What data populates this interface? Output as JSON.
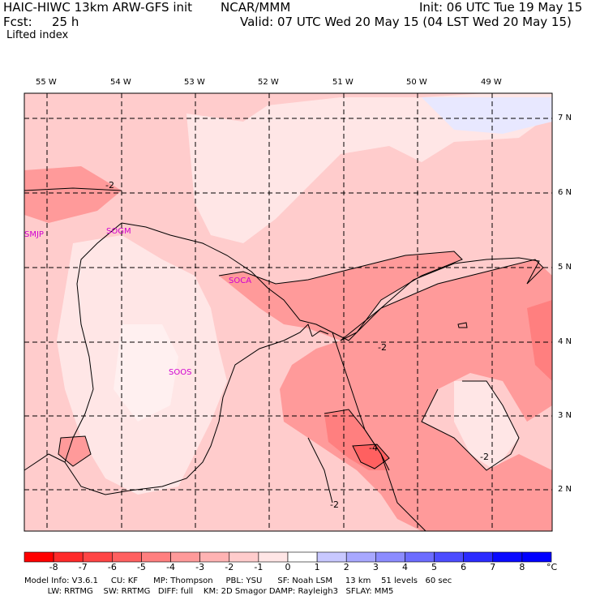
{
  "header": {
    "model_title": "HAIC-HIWC 13km ARW-GFS init",
    "org": "NCAR/MMM",
    "init": "Init: 06 UTC Tue 19 May 15",
    "fcst_label": "Fcst:",
    "fcst_hours": "25 h",
    "valid": "Valid: 07 UTC Wed 20 May 15 (04 LST Wed 20 May 15)",
    "field": "Lifted index"
  },
  "map": {
    "lon_labels": [
      "55 W",
      "54 W",
      "53 W",
      "52 W",
      "51 W",
      "50 W",
      "49 W"
    ],
    "lat_labels": [
      "7 N",
      "6 N",
      "5 N",
      "4 N",
      "3 N",
      "2 N"
    ],
    "stations": [
      "SMJP",
      "SOGM",
      "SOCA",
      "SOOS"
    ],
    "contour_labels": [
      "-2",
      "-2",
      "-4",
      "-2",
      "-2"
    ]
  },
  "colorbar": {
    "labels": [
      "-8",
      "-7",
      "-6",
      "-5",
      "-4",
      "-3",
      "-2",
      "-1",
      "0",
      "1",
      "2",
      "3",
      "4",
      "5",
      "6",
      "7",
      "8"
    ],
    "unit": "°C",
    "colors": [
      "#ff0000",
      "#ff2a2a",
      "#ff4545",
      "#ff6060",
      "#ff7f7f",
      "#ff9a9a",
      "#ffb3b3",
      "#ffcccc",
      "#ffe6e6",
      "#ffffff",
      "#c8c8ff",
      "#a8a8ff",
      "#8c8cff",
      "#6c6cff",
      "#4c4cff",
      "#2c2cff",
      "#0a0aff",
      "#0000ff"
    ]
  },
  "footer": {
    "line1": "Model Info: V3.6.1     CU: KF      MP: Thompson     PBL: YSU      SF: Noah LSM     13 km    51 levels   60 sec",
    "line2": "         LW: RRTMG    SW: RRTMG   DIFF: full    KM: 2D Smagor DAMP: Rayleigh3   SFLAY: MM5"
  }
}
